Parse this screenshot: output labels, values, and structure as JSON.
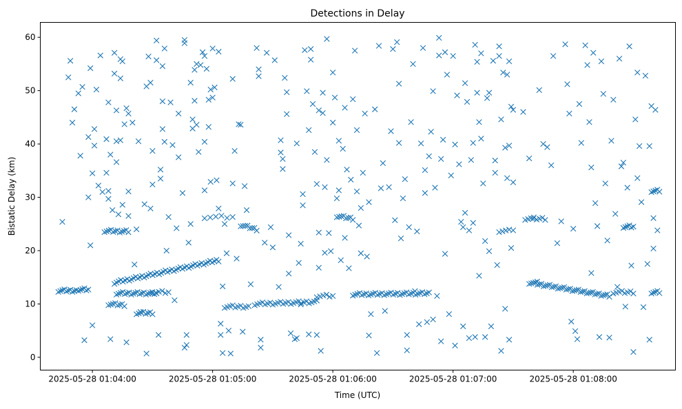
{
  "chart_data": {
    "type": "scatter",
    "title": "Detections in Delay",
    "xlabel": "Time (UTC)",
    "ylabel": "Bistatic Delay (km)",
    "marker": "x",
    "color": "#1f77b4",
    "x_units": "seconds after 2025-05-28 01:00:00 UTC",
    "xlim": [
      214,
      531
    ],
    "ylim": [
      -2.4,
      62.8
    ],
    "x_ticks": [
      {
        "value": 240,
        "label": "2025-05-28 01:04:00"
      },
      {
        "value": 300,
        "label": "2025-05-28 01:05:00"
      },
      {
        "value": 360,
        "label": "2025-05-28 01:06:00"
      },
      {
        "value": 420,
        "label": "2025-05-28 01:07:00"
      },
      {
        "value": 480,
        "label": "2025-05-28 01:08:00"
      }
    ],
    "y_ticks": [
      {
        "value": 0,
        "label": "0"
      },
      {
        "value": 10,
        "label": "10"
      },
      {
        "value": 20,
        "label": "20"
      },
      {
        "value": 30,
        "label": "30"
      },
      {
        "value": 40,
        "label": "40"
      },
      {
        "value": 50,
        "label": "50"
      },
      {
        "value": 60,
        "label": "60"
      }
    ],
    "grid": false,
    "tracks": [
      {
        "t0": 223,
        "t1": 232,
        "d0": 12.5,
        "d1": 12.5,
        "n": 10
      },
      {
        "t0": 233,
        "t1": 238,
        "d0": 12.7,
        "d1": 12.7,
        "n": 6
      },
      {
        "t0": 246,
        "t1": 258,
        "d0": 23.7,
        "d1": 23.6,
        "n": 12
      },
      {
        "t0": 248,
        "t1": 256,
        "d0": 10,
        "d1": 9.8,
        "n": 8
      },
      {
        "t0": 252,
        "t1": 272,
        "d0": 12,
        "d1": 12,
        "n": 20
      },
      {
        "t0": 251,
        "t1": 303,
        "d0": 14,
        "d1": 18.2,
        "n": 50
      },
      {
        "t0": 262,
        "t1": 270,
        "d0": 8.3,
        "d1": 8.3,
        "n": 8
      },
      {
        "t0": 270,
        "t1": 278,
        "d0": 12.2,
        "d1": 12.2,
        "n": 6
      },
      {
        "t0": 296,
        "t1": 310,
        "d0": 26.3,
        "d1": 26.3,
        "n": 6
      },
      {
        "t0": 306,
        "t1": 318,
        "d0": 9.5,
        "d1": 9.5,
        "n": 10
      },
      {
        "t0": 314,
        "t1": 322,
        "d0": 24.8,
        "d1": 24,
        "n": 8
      },
      {
        "t0": 321,
        "t1": 352,
        "d0": 10,
        "d1": 10.4,
        "n": 25
      },
      {
        "t0": 352,
        "t1": 360,
        "d0": 11.5,
        "d1": 11.5,
        "n": 6
      },
      {
        "t0": 362,
        "t1": 370,
        "d0": 26.5,
        "d1": 26,
        "n": 8
      },
      {
        "t0": 370,
        "t1": 408,
        "d0": 11.8,
        "d1": 12,
        "n": 35
      },
      {
        "t0": 443,
        "t1": 448,
        "d0": 23.7,
        "d1": 23.7,
        "n": 4
      },
      {
        "t0": 456,
        "t1": 466,
        "d0": 26,
        "d1": 26,
        "n": 8
      },
      {
        "t0": 458,
        "t1": 498,
        "d0": 14,
        "d1": 11.5,
        "n": 40
      },
      {
        "t0": 500,
        "t1": 510,
        "d0": 12.2,
        "d1": 12.2,
        "n": 8
      },
      {
        "t0": 505,
        "t1": 510,
        "d0": 24.5,
        "d1": 24.5,
        "n": 6
      },
      {
        "t0": 519,
        "t1": 523,
        "d0": 31.2,
        "d1": 31.2,
        "n": 5
      },
      {
        "t0": 519,
        "t1": 523,
        "d0": 12.2,
        "d1": 12.2,
        "n": 5
      }
    ],
    "points": [
      [
        225,
        25.4
      ],
      [
        228,
        52.5
      ],
      [
        229,
        55.6
      ],
      [
        230,
        44
      ],
      [
        231,
        46.5
      ],
      [
        233,
        49.5
      ],
      [
        234,
        37.8
      ],
      [
        235,
        50.7
      ],
      [
        236,
        3.2
      ],
      [
        238,
        41.3
      ],
      [
        238,
        30
      ],
      [
        239,
        54.2
      ],
      [
        239,
        21
      ],
      [
        240,
        6
      ],
      [
        240,
        34.5
      ],
      [
        241,
        42.8
      ],
      [
        241,
        39.7
      ],
      [
        242,
        50.2
      ],
      [
        243,
        32.2
      ],
      [
        244,
        56.6
      ],
      [
        245,
        31
      ],
      [
        247,
        34.6
      ],
      [
        247,
        40.9
      ],
      [
        248,
        47.8
      ],
      [
        248,
        29.7
      ],
      [
        248,
        31.2
      ],
      [
        249,
        3.4
      ],
      [
        249,
        38
      ],
      [
        250,
        27.6
      ],
      [
        251,
        53.2
      ],
      [
        251,
        57.1
      ],
      [
        252,
        40.5
      ],
      [
        252,
        36.6
      ],
      [
        252,
        46.3
      ],
      [
        253,
        26.8
      ],
      [
        254,
        55.9
      ],
      [
        254,
        52.3
      ],
      [
        254,
        40.7
      ],
      [
        255,
        28.6
      ],
      [
        255,
        55.5
      ],
      [
        256,
        43.7
      ],
      [
        257,
        46.7
      ],
      [
        257,
        2.8
      ],
      [
        258,
        31.1
      ],
      [
        258,
        45.7
      ],
      [
        258,
        26.5
      ],
      [
        260,
        44
      ],
      [
        261,
        17.4
      ],
      [
        262,
        24
      ],
      [
        263,
        40.5
      ],
      [
        264,
        8.5
      ],
      [
        266,
        28.7
      ],
      [
        267,
        50.8
      ],
      [
        267,
        0.7
      ],
      [
        268,
        56.4
      ],
      [
        269,
        51.5
      ],
      [
        269,
        27.9
      ],
      [
        270,
        38.7
      ],
      [
        270,
        32.4
      ],
      [
        272,
        59.4
      ],
      [
        272,
        55.7
      ],
      [
        273,
        4.2
      ],
      [
        274,
        35.2
      ],
      [
        274,
        33.5
      ],
      [
        275,
        48
      ],
      [
        275,
        54.6
      ],
      [
        275,
        42.8
      ],
      [
        276,
        57.9
      ],
      [
        276,
        40.4
      ],
      [
        277,
        20
      ],
      [
        278,
        26.3
      ],
      [
        279,
        47.8
      ],
      [
        280,
        39.8
      ],
      [
        281,
        10.7
      ],
      [
        282,
        24.2
      ],
      [
        283,
        45.7
      ],
      [
        283,
        37.5
      ],
      [
        285,
        30.8
      ],
      [
        286,
        59.5
      ],
      [
        286,
        58.9
      ],
      [
        286,
        1.8
      ],
      [
        287,
        4.2
      ],
      [
        287,
        2.3
      ],
      [
        288,
        21.5
      ],
      [
        289,
        51.5
      ],
      [
        289,
        25
      ],
      [
        290,
        44.6
      ],
      [
        290,
        42.9
      ],
      [
        291,
        53.9
      ],
      [
        291,
        48.1
      ],
      [
        292,
        55
      ],
      [
        292,
        43.6
      ],
      [
        293,
        38.5
      ],
      [
        294,
        54.8
      ],
      [
        295,
        57.2
      ],
      [
        296,
        56.5
      ],
      [
        296,
        40.4
      ],
      [
        296,
        31.3
      ],
      [
        297,
        54.1
      ],
      [
        298,
        48.3
      ],
      [
        298,
        43.2
      ],
      [
        299,
        50.2
      ],
      [
        299,
        32.9
      ],
      [
        300,
        48.7
      ],
      [
        300,
        57.9
      ],
      [
        301,
        50.6
      ],
      [
        302,
        33.2
      ],
      [
        303,
        57.3
      ],
      [
        303,
        27.9
      ],
      [
        304,
        6.3
      ],
      [
        304,
        4.2
      ],
      [
        305,
        13.3
      ],
      [
        305,
        0.8
      ],
      [
        306,
        25
      ],
      [
        307,
        19.5
      ],
      [
        308,
        5
      ],
      [
        309,
        0.7
      ],
      [
        310,
        32.6
      ],
      [
        310,
        52.2
      ],
      [
        311,
        38.7
      ],
      [
        312,
        18.5
      ],
      [
        313,
        43.7
      ],
      [
        314,
        43.6
      ],
      [
        315,
        4.8
      ],
      [
        316,
        32.1
      ],
      [
        317,
        27.6
      ],
      [
        319,
        13.7
      ],
      [
        322,
        58
      ],
      [
        323,
        54
      ],
      [
        323,
        52.7
      ],
      [
        324,
        3.3
      ],
      [
        324,
        1.8
      ],
      [
        326,
        21.5
      ],
      [
        327,
        57.1
      ],
      [
        329,
        24.4
      ],
      [
        330,
        20.6
      ],
      [
        331,
        55.7
      ],
      [
        333,
        13.2
      ],
      [
        334,
        40.7
      ],
      [
        334,
        38.4
      ],
      [
        335,
        37.2
      ],
      [
        335,
        35.3
      ],
      [
        336,
        52.4
      ],
      [
        337,
        49.7
      ],
      [
        337,
        45.6
      ],
      [
        338,
        15.7
      ],
      [
        338,
        22.9
      ],
      [
        339,
        4.5
      ],
      [
        341,
        3.4
      ],
      [
        342,
        3.6
      ],
      [
        342,
        40.1
      ],
      [
        343,
        17.7
      ],
      [
        344,
        21.3
      ],
      [
        344,
        9.9
      ],
      [
        345,
        28.5
      ],
      [
        345,
        30.6
      ],
      [
        346,
        57.6
      ],
      [
        347,
        49.9
      ],
      [
        348,
        42.6
      ],
      [
        348,
        4.3
      ],
      [
        349,
        55.8
      ],
      [
        349,
        57.8
      ],
      [
        350,
        47.5
      ],
      [
        351,
        38.5
      ],
      [
        352,
        32.5
      ],
      [
        352,
        4.2
      ],
      [
        353,
        16.8
      ],
      [
        353,
        46.3
      ],
      [
        353,
        23.4
      ],
      [
        354,
        1.2
      ],
      [
        355,
        49.6
      ],
      [
        355,
        45.8
      ],
      [
        356,
        31.9
      ],
      [
        356,
        19.6
      ],
      [
        357,
        59.7
      ],
      [
        357,
        37
      ],
      [
        358,
        23.3
      ],
      [
        359,
        19.9
      ],
      [
        360,
        53.4
      ],
      [
        360,
        44
      ],
      [
        361,
        48.7
      ],
      [
        362,
        29.8
      ],
      [
        363,
        31.3
      ],
      [
        363,
        40.6
      ],
      [
        364,
        18.2
      ],
      [
        365,
        39.1
      ],
      [
        366,
        46.8
      ],
      [
        366,
        22.4
      ],
      [
        367,
        35.2
      ],
      [
        368,
        16.7
      ],
      [
        369,
        33.3
      ],
      [
        370,
        48.4
      ],
      [
        371,
        57.5
      ],
      [
        372,
        42.6
      ],
      [
        372,
        31.1
      ],
      [
        373,
        24.7
      ],
      [
        374,
        19.5
      ],
      [
        374,
        28
      ],
      [
        375,
        34.6
      ],
      [
        376,
        45.7
      ],
      [
        377,
        18.9
      ],
      [
        378,
        4.1
      ],
      [
        378,
        29.1
      ],
      [
        379,
        8.1
      ],
      [
        381,
        46.5
      ],
      [
        382,
        0.8
      ],
      [
        383,
        58.4
      ],
      [
        384,
        31.7
      ],
      [
        385,
        36.4
      ],
      [
        386,
        8.7
      ],
      [
        388,
        31.9
      ],
      [
        389,
        42.4
      ],
      [
        390,
        57.8
      ],
      [
        391,
        25.7
      ],
      [
        392,
        59.1
      ],
      [
        393,
        51.3
      ],
      [
        393,
        40.2
      ],
      [
        394,
        22.3
      ],
      [
        395,
        29.8
      ],
      [
        396,
        33.4
      ],
      [
        397,
        4.2
      ],
      [
        397,
        1.3
      ],
      [
        398,
        24.4
      ],
      [
        399,
        44.1
      ],
      [
        400,
        55
      ],
      [
        401,
        12.4
      ],
      [
        402,
        23.6
      ],
      [
        403,
        6.2
      ],
      [
        404,
        40.1
      ],
      [
        405,
        58
      ],
      [
        406,
        35.1
      ],
      [
        406,
        30.8
      ],
      [
        407,
        6.6
      ],
      [
        408,
        37.7
      ],
      [
        409,
        42.3
      ],
      [
        410,
        49.9
      ],
      [
        410,
        7.1
      ],
      [
        411,
        31.8
      ],
      [
        412,
        11.5
      ],
      [
        413,
        59.9
      ],
      [
        413,
        56.6
      ],
      [
        414,
        3
      ],
      [
        414,
        37.2
      ],
      [
        415,
        40.8
      ],
      [
        416,
        57.2
      ],
      [
        416,
        19.4
      ],
      [
        417,
        53
      ],
      [
        418,
        8.1
      ],
      [
        419,
        34.1
      ],
      [
        420,
        56.5
      ],
      [
        421,
        2.2
      ],
      [
        421,
        39.9
      ],
      [
        422,
        49.1
      ],
      [
        423,
        36.2
      ],
      [
        424,
        25.4
      ],
      [
        425,
        5.8
      ],
      [
        425,
        24.4
      ],
      [
        426,
        51.4
      ],
      [
        426,
        27.1
      ],
      [
        427,
        47.9
      ],
      [
        428,
        23.8
      ],
      [
        428,
        3.6
      ],
      [
        429,
        37
      ],
      [
        430,
        40.2
      ],
      [
        430,
        25.2
      ],
      [
        431,
        58.6
      ],
      [
        431,
        3.8
      ],
      [
        432,
        55.4
      ],
      [
        432,
        49.6
      ],
      [
        433,
        44.1
      ],
      [
        433,
        15.3
      ],
      [
        434,
        57
      ],
      [
        434,
        41
      ],
      [
        435,
        32.6
      ],
      [
        436,
        21.8
      ],
      [
        436,
        3.8
      ],
      [
        437,
        48.6
      ],
      [
        438,
        19.9
      ],
      [
        438,
        49.6
      ],
      [
        439,
        5.8
      ],
      [
        440,
        55.6
      ],
      [
        441,
        34.6
      ],
      [
        441,
        36.9
      ],
      [
        442,
        17.3
      ],
      [
        443,
        58.3
      ],
      [
        443,
        56.5
      ],
      [
        444,
        44.6
      ],
      [
        444,
        1.2
      ],
      [
        445,
        53.4
      ],
      [
        446,
        39.3
      ],
      [
        446,
        9.1
      ],
      [
        447,
        53
      ],
      [
        447,
        33.6
      ],
      [
        448,
        55.5
      ],
      [
        448,
        39.7
      ],
      [
        448,
        3.3
      ],
      [
        449,
        20.5
      ],
      [
        449,
        47
      ],
      [
        450,
        46.4
      ],
      [
        450,
        32.8
      ],
      [
        450,
        23.8
      ],
      [
        455,
        46
      ],
      [
        458,
        37.3
      ],
      [
        460,
        26
      ],
      [
        462,
        14.2
      ],
      [
        463,
        50.1
      ],
      [
        465,
        40
      ],
      [
        467,
        39.4
      ],
      [
        469,
        36
      ],
      [
        470,
        56.5
      ],
      [
        472,
        21.4
      ],
      [
        474,
        25.5
      ],
      [
        476,
        58.7
      ],
      [
        477,
        51.2
      ],
      [
        478,
        45.7
      ],
      [
        479,
        6.7
      ],
      [
        480,
        24.1
      ],
      [
        481,
        4.9
      ],
      [
        482,
        3.4
      ],
      [
        483,
        47.5
      ],
      [
        484,
        40.2
      ],
      [
        486,
        58.5
      ],
      [
        487,
        54.8
      ],
      [
        488,
        44.1
      ],
      [
        489,
        35.6
      ],
      [
        489,
        15.8
      ],
      [
        490,
        57.1
      ],
      [
        491,
        28.9
      ],
      [
        492,
        24.6
      ],
      [
        493,
        3.8
      ],
      [
        494,
        55.5
      ],
      [
        495,
        49.4
      ],
      [
        496,
        32.6
      ],
      [
        497,
        21.9
      ],
      [
        498,
        3.7
      ],
      [
        499,
        40.6
      ],
      [
        500,
        48.3
      ],
      [
        501,
        26.9
      ],
      [
        502,
        13.2
      ],
      [
        503,
        56
      ],
      [
        504,
        35.8
      ],
      [
        505,
        36.5
      ],
      [
        506,
        9.5
      ],
      [
        507,
        31.8
      ],
      [
        508,
        58.3
      ],
      [
        509,
        17.2
      ],
      [
        510,
        1
      ],
      [
        511,
        44.6
      ],
      [
        512,
        53.4
      ],
      [
        512,
        33.6
      ],
      [
        513,
        39.6
      ],
      [
        514,
        29.1
      ],
      [
        515,
        9.4
      ],
      [
        516,
        52.8
      ],
      [
        517,
        17.5
      ],
      [
        518,
        39.6
      ],
      [
        518,
        3.3
      ],
      [
        519,
        47.1
      ],
      [
        520,
        20.4
      ],
      [
        520,
        26.1
      ],
      [
        521,
        46.4
      ],
      [
        522,
        23.8
      ]
    ]
  }
}
